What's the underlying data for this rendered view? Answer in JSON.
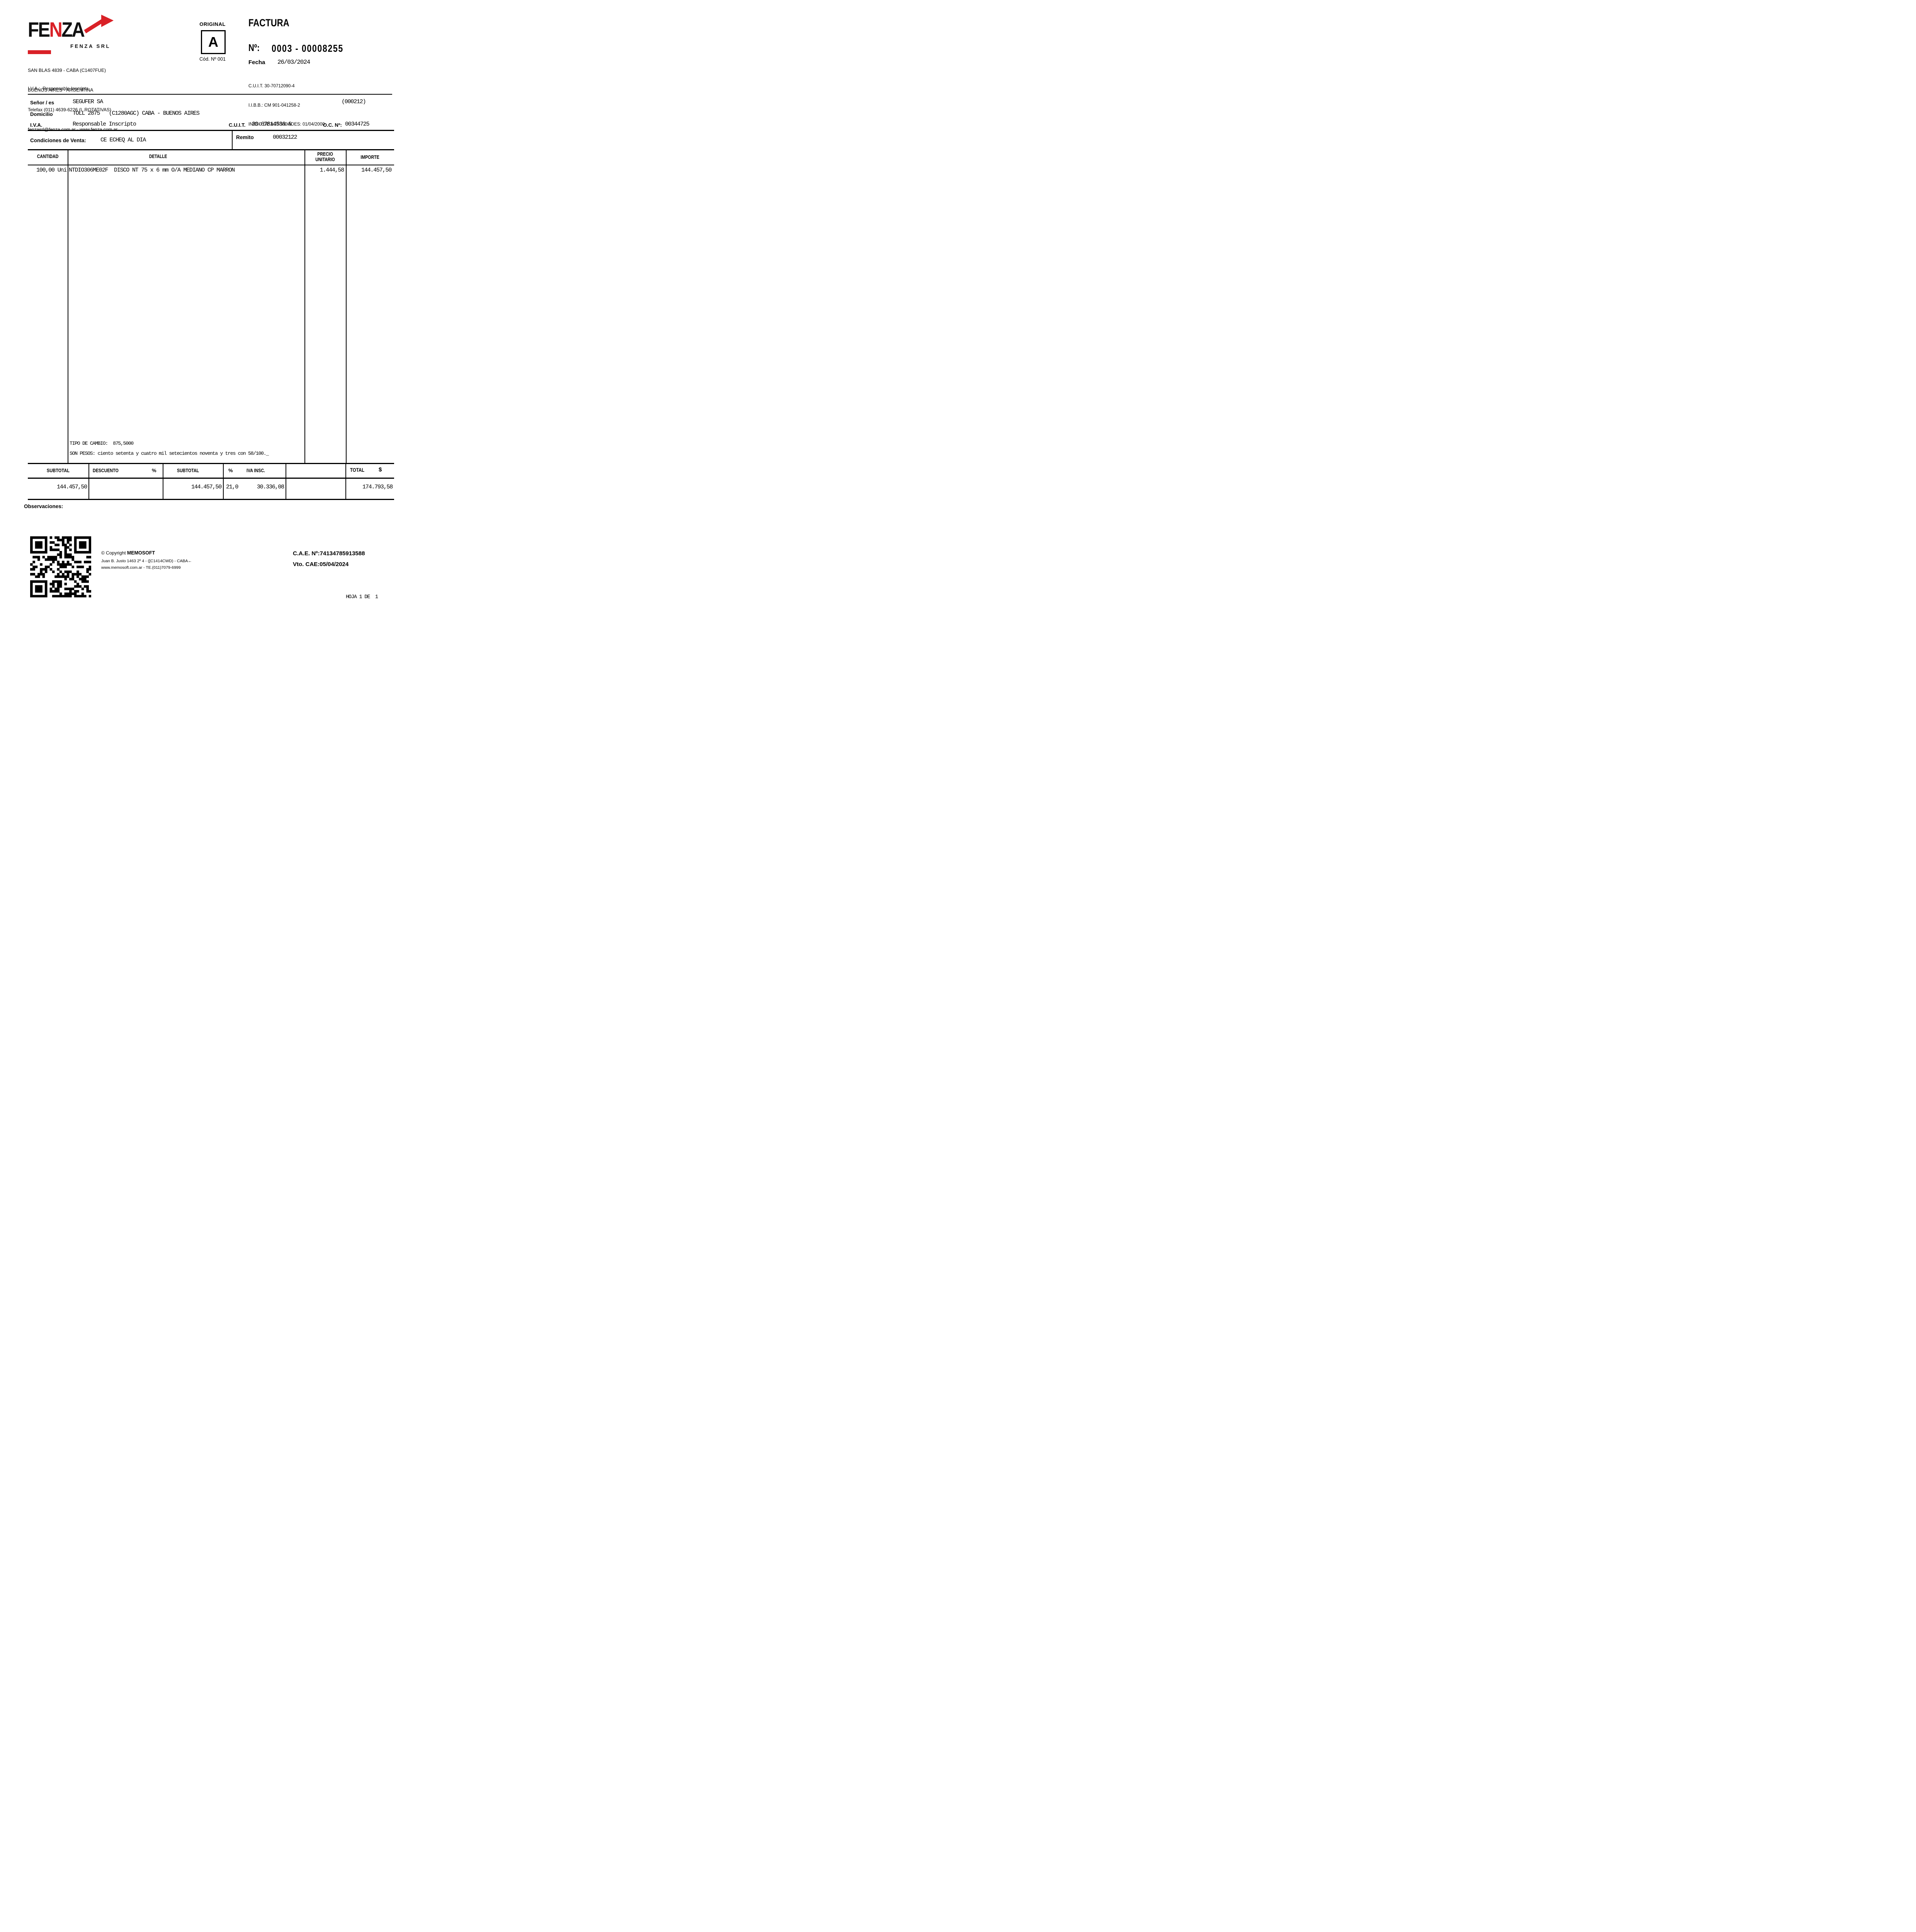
{
  "colors": {
    "accent_red": "#d92127",
    "ink": "#000000"
  },
  "company": {
    "logo_word": "FENZA",
    "logo_caption": "FENZA SRL",
    "address_line1": "SAN BLAS 4839 - CABA (C1407FUE)",
    "address_line2": "BUENOS AIRES - ARGENTINA",
    "address_line3": "Telefax (011) 4639-6226 (L.ROTATIVAS)",
    "address_line4": "fenzasrl@fenza.com.ar - www.fenza.com.ar",
    "iva_line": "I.V.A.:  Responsable Inscripto"
  },
  "doc": {
    "copy_type": "ORIGINAL",
    "letter": "A",
    "code": "Cód. Nº 001",
    "title": "FACTURA",
    "number_label": "Nº:",
    "number": "0003 - 00008255",
    "fecha_label": "Fecha",
    "fecha": "26/03/2024",
    "cuit": "C.U.I.T. 30-70712090-4",
    "iibb": "I.I.B.B.: CM 901-041258-2",
    "inicio": "INICIO DE ACTIVIDADES: 01/04/2000"
  },
  "customer": {
    "senor_label": "Señor / es",
    "name": "SEGUFER SA",
    "code": "(000212)",
    "domicilio_label": "Domicilio",
    "domicilio": "TOLL 2875   (C1280AGC) CABA - BUENOS AIRES",
    "iva_label": "I.V.A.",
    "iva": "Responsable Inscripto",
    "cuit_label": "C.U.I.T.",
    "cuit": "30-67814536-6",
    "oc_label": "O.C. Nº:",
    "oc": "00344725",
    "cond_label": "Condiciones de Venta:",
    "cond": "CE ECHEQ AL DIA",
    "remito_label": "Remito",
    "remito": "00032122"
  },
  "items": {
    "headers": {
      "qty": "CANTIDAD",
      "detail": "DETALLE",
      "unit_price_line1": "PRECIO",
      "unit_price_line2": "UNITARIO",
      "amount": "IMPORTE"
    },
    "rows": [
      {
        "qty": "100,00 Uni",
        "detail": "NTDIO306ME02F  DISCO NT 75 x 6 mm O/A MEDIANO CP MARRON",
        "unit_price": "1.444,58",
        "amount": "144.457,50"
      }
    ],
    "tipo_cambio": "TIPO DE CAMBIO:  875,5000",
    "son_pesos": "SON PESOS: ciento setenta y cuatro mil setecientos noventa y tres con 58/100._"
  },
  "totals": {
    "subtotal_label": "SUBTOTAL",
    "descuento_label": "DESCUENTO",
    "pct1": "%",
    "subtotal2_label": "SUBTOTAL",
    "pct2": "%",
    "iva_label": "IVA INSC.",
    "total_label": "TOTAL",
    "currency": "$",
    "subtotal": "144.457,50",
    "subtotal2": "144.457,50",
    "iva_pct": "21,0",
    "iva_amount": "30.336,08",
    "total": "174.793,58"
  },
  "observaciones_label": "Observaciones:",
  "footer": {
    "copyright_prefix": "© Copyright ",
    "copyright_brand": "MEMOSOFT",
    "address": "Juan B. Justo 1463 2º 4 - ([C1414CWD) - CABA←",
    "web": "www.memosoft.com.ar - TE.(011)7079-6999",
    "cae_label": "C.A.E. Nº:",
    "cae": "74134785913588",
    "vto_label": "Vto. CAE:",
    "vto": "05/04/2024",
    "hoja": "HOJA 1 DE  1"
  }
}
